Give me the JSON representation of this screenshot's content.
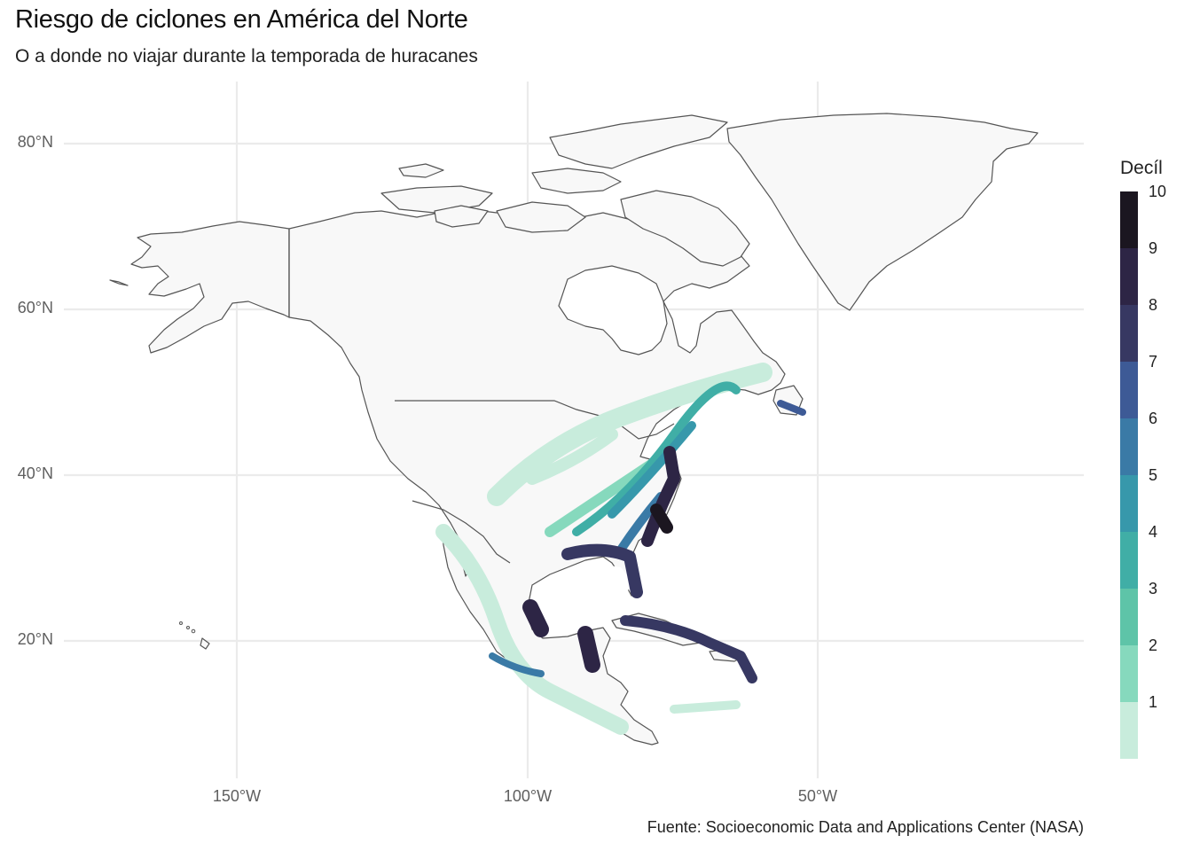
{
  "title": "Riesgo de ciclones en América del Norte",
  "subtitle": "O a donde no viajar durante la temporada de huracanes",
  "caption": "Fuente: Socioeconomic Data and Applications Center (NASA)",
  "axes": {
    "y_labels": [
      "80°N",
      "60°N",
      "40°N",
      "20°N"
    ],
    "x_labels": [
      "150°W",
      "100°W",
      "50°W"
    ]
  },
  "legend": {
    "title": "Decíl",
    "labels": [
      "10",
      "9",
      "8",
      "7",
      "6",
      "5",
      "4",
      "3",
      "2",
      "1"
    ],
    "colors": [
      "#1b1620",
      "#2d2545",
      "#373862",
      "#3d5a96",
      "#3a7aa6",
      "#3798ab",
      "#40aea6",
      "#5ec4a8",
      "#86d9bd",
      "#c8ecdc"
    ]
  },
  "colors": {
    "land": "#f8f8f8",
    "border": "#555555",
    "grid": "#ebebeb"
  }
}
